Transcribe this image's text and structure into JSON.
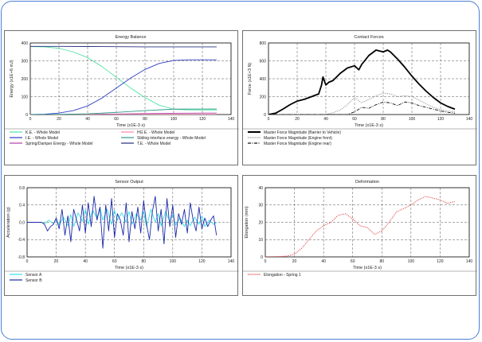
{
  "chart_data": [
    {
      "type": "line",
      "title": "Energy Balance",
      "xlabel": "Time (x1E-3 s)",
      "ylabel": "Energy (x1E+6 mJ)",
      "xlim": [
        0,
        140
      ],
      "ylim": [
        0,
        400
      ],
      "xticks": [
        "0",
        "20",
        "40",
        "60",
        "80",
        "100",
        "120",
        "140"
      ],
      "yticks": [
        "0",
        "100",
        "200",
        "300",
        "400"
      ],
      "grid": true,
      "legend_position": "bottom",
      "legend_columns": 2,
      "series": [
        {
          "name": "K.E. - Whole Model",
          "color": "#4fe3a2",
          "dash": "solid",
          "x": [
            0,
            10,
            20,
            30,
            40,
            50,
            60,
            70,
            80,
            90,
            100,
            110,
            120,
            130
          ],
          "y": [
            380,
            378,
            370,
            350,
            318,
            268,
            208,
            148,
            95,
            52,
            30,
            26,
            26,
            26
          ]
        },
        {
          "name": "I.E. - Whole Model",
          "color": "#2d3fc4",
          "dash": "solid",
          "x": [
            0,
            10,
            20,
            30,
            40,
            50,
            60,
            70,
            80,
            90,
            100,
            110,
            120,
            130
          ],
          "y": [
            0,
            2,
            8,
            22,
            48,
            92,
            148,
            204,
            252,
            286,
            302,
            306,
            306,
            306
          ]
        },
        {
          "name": "Spring/Damper Energy - Whole Model",
          "color": "#b23ea8",
          "dash": "solid",
          "x": [
            0,
            20,
            40,
            60,
            80,
            100,
            120,
            130
          ],
          "y": [
            0,
            0.5,
            1.5,
            3,
            5,
            7,
            8,
            8
          ]
        },
        {
          "name": "HG E. - Whole Model",
          "color": "#f08aa8",
          "dash": "solid",
          "x": [
            0,
            20,
            40,
            60,
            80,
            100,
            120,
            130
          ],
          "y": [
            0,
            0,
            0.3,
            0.6,
            0.9,
            1.2,
            1.5,
            1.5
          ]
        },
        {
          "name": "Sliding interface energy - Whole Model",
          "color": "#2b9c8a",
          "dash": "solid",
          "x": [
            0,
            20,
            40,
            60,
            80,
            100,
            120,
            130
          ],
          "y": [
            0,
            1,
            4,
            12,
            22,
            30,
            31,
            31
          ]
        },
        {
          "name": "T.E. - Whole Model",
          "color": "#26307c",
          "dash": "solid",
          "x": [
            0,
            20,
            40,
            60,
            80,
            100,
            120,
            130
          ],
          "y": [
            381,
            381,
            380,
            379,
            378,
            378,
            378,
            378
          ]
        }
      ]
    },
    {
      "type": "line",
      "title": "Contact Forces",
      "xlabel": "Time (x1E-3 s)",
      "ylabel": "Force (x1E+3 N)",
      "xlim": [
        0,
        140
      ],
      "ylim": [
        0,
        800
      ],
      "xticks": [
        "0",
        "20",
        "40",
        "60",
        "80",
        "100",
        "120",
        "140"
      ],
      "yticks": [
        "0",
        "200",
        "400",
        "600",
        "800"
      ],
      "grid": true,
      "legend_position": "bottom",
      "legend_columns": 1,
      "series": [
        {
          "name": "Master Force Magnitude (Barrier to Vehicle)",
          "color": "#000000",
          "dash": "thick",
          "x": [
            0,
            5,
            10,
            15,
            20,
            25,
            30,
            35,
            37,
            38,
            40,
            42,
            45,
            50,
            55,
            60,
            63,
            65,
            70,
            75,
            80,
            83,
            85,
            90,
            95,
            100,
            105,
            110,
            115,
            120,
            125,
            130
          ],
          "y": [
            0,
            15,
            60,
            110,
            150,
            170,
            200,
            230,
            330,
            420,
            330,
            360,
            380,
            460,
            520,
            545,
            500,
            560,
            660,
            720,
            700,
            720,
            700,
            620,
            530,
            430,
            340,
            260,
            190,
            130,
            90,
            60
          ]
        },
        {
          "name": "Master Force Magnitude (Engine front)",
          "color": "#8a8a8a",
          "dash": "dotted",
          "x": [
            0,
            40,
            45,
            50,
            55,
            60,
            65,
            70,
            75,
            80,
            85,
            90,
            95,
            100,
            105,
            110,
            115,
            120,
            125,
            130
          ],
          "y": [
            0,
            0,
            20,
            50,
            110,
            190,
            130,
            170,
            210,
            240,
            230,
            200,
            210,
            200,
            160,
            120,
            80,
            55,
            40,
            30
          ]
        },
        {
          "name": "Master Force Magnitude (Engine rear)",
          "color": "#111111",
          "dash": "dashdot",
          "x": [
            0,
            55,
            60,
            65,
            70,
            75,
            80,
            85,
            90,
            95,
            100,
            105,
            110,
            115,
            120,
            125,
            130
          ],
          "y": [
            0,
            0,
            30,
            80,
            70,
            110,
            140,
            130,
            100,
            140,
            130,
            100,
            80,
            60,
            40,
            25,
            15
          ]
        }
      ]
    },
    {
      "type": "line",
      "title": "Sensor Output",
      "xlabel": "Time (x1E-3 s)",
      "ylabel": "Acceleration (g)",
      "xlim": [
        0,
        140
      ],
      "ylim": [
        -0.8,
        0.8
      ],
      "xticks": [
        "0",
        "20",
        "40",
        "60",
        "80",
        "100",
        "120",
        "140"
      ],
      "yticks": [
        "-0.8",
        "-0.4",
        "0.0",
        "0.4",
        "0.8"
      ],
      "grid": true,
      "legend_position": "bottom",
      "legend_columns": 1,
      "series": [
        {
          "name": "Sensor A",
          "color": "#33e0e8",
          "dash": "solid",
          "x": [
            0,
            10,
            12,
            15,
            18,
            20,
            22,
            25,
            28,
            30,
            32,
            35,
            38,
            40,
            42,
            45,
            48,
            50,
            52,
            55,
            58,
            60,
            62,
            65,
            68,
            70,
            72,
            75,
            78,
            80,
            82,
            85,
            88,
            90,
            92,
            95,
            98,
            100,
            102,
            105,
            108,
            110,
            112,
            115,
            118,
            120,
            122,
            125,
            128,
            130
          ],
          "y": [
            0,
            0,
            -0.03,
            0.05,
            -0.04,
            0.08,
            -0.06,
            0.12,
            -0.08,
            0.18,
            -0.1,
            0.22,
            0.02,
            0.3,
            -0.05,
            0.28,
            0.1,
            0.35,
            0.05,
            0.3,
            -0.05,
            0.28,
            0.05,
            0.22,
            0.0,
            0.25,
            -0.05,
            0.2,
            0.05,
            0.25,
            -0.1,
            0.3,
            0.0,
            0.2,
            -0.08,
            0.25,
            0.02,
            0.18,
            -0.06,
            0.1,
            -0.1,
            0.05,
            -0.08,
            0.12,
            -0.05,
            0.15,
            -0.1,
            0.05,
            -0.05,
            0.0
          ]
        },
        {
          "name": "Sensor B",
          "color": "#1c2aa8",
          "dash": "solid",
          "x": [
            0,
            10,
            12,
            14,
            16,
            18,
            20,
            22,
            24,
            26,
            28,
            30,
            32,
            34,
            36,
            38,
            40,
            42,
            44,
            46,
            48,
            50,
            52,
            54,
            56,
            58,
            60,
            62,
            64,
            66,
            68,
            70,
            72,
            74,
            76,
            78,
            80,
            82,
            84,
            86,
            88,
            90,
            92,
            94,
            96,
            98,
            100,
            102,
            104,
            106,
            108,
            110,
            112,
            114,
            116,
            118,
            120,
            122,
            124,
            126,
            128,
            130
          ],
          "y": [
            0,
            0,
            -0.05,
            -0.2,
            -0.1,
            -0.05,
            0.1,
            -0.15,
            0.3,
            -0.3,
            0.15,
            -0.45,
            0.3,
            0.05,
            -0.2,
            0.4,
            -0.25,
            0.45,
            -0.1,
            0.6,
            0.05,
            0.35,
            -0.6,
            0.4,
            -0.2,
            0.55,
            -0.35,
            0.2,
            0.05,
            -0.3,
            0.45,
            -0.45,
            0.25,
            -0.15,
            0.35,
            -0.25,
            0.5,
            -0.05,
            -0.4,
            0.25,
            0.6,
            -0.2,
            0.3,
            -0.5,
            0.55,
            -0.1,
            0.4,
            -0.35,
            0.2,
            -0.05,
            0.3,
            -0.25,
            0.45,
            0.05,
            -0.2,
            0.35,
            -0.15,
            0.1,
            -0.1,
            0.05,
            0.15,
            -0.3
          ]
        }
      ]
    },
    {
      "type": "line",
      "title": "Deformation",
      "xlabel": "Time (x1E-3 s)",
      "ylabel": "Elongation (mm)",
      "xlim": [
        0,
        140
      ],
      "ylim": [
        0,
        40
      ],
      "xticks": [
        "0",
        "20",
        "40",
        "60",
        "80",
        "100",
        "120",
        "140"
      ],
      "yticks": [
        "0",
        "10",
        "20",
        "30",
        "40"
      ],
      "grid": true,
      "legend_position": "bottom",
      "legend_columns": 1,
      "series": [
        {
          "name": "Elongation - Spring 1",
          "color": "#e03030",
          "dash": "dotted",
          "x": [
            0,
            10,
            15,
            20,
            25,
            30,
            35,
            40,
            45,
            50,
            55,
            60,
            65,
            70,
            75,
            80,
            85,
            90,
            95,
            100,
            105,
            110,
            115,
            120,
            125,
            130
          ],
          "y": [
            0,
            0.2,
            0.5,
            1.5,
            5,
            10,
            15,
            18,
            20,
            24,
            25,
            22,
            18,
            17,
            13,
            15,
            20,
            26,
            28,
            30,
            33,
            35,
            34,
            33,
            31,
            32
          ]
        }
      ]
    }
  ]
}
